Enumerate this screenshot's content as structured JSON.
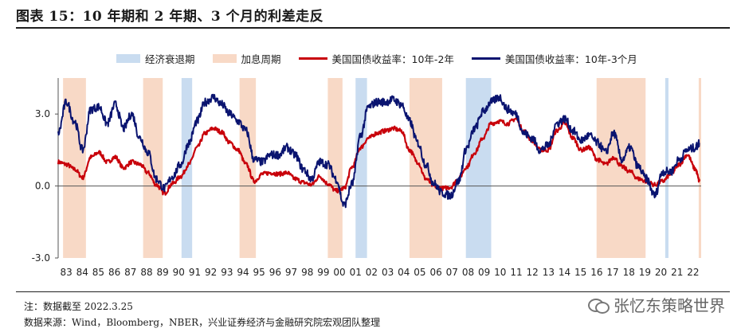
{
  "header": {
    "title": "图表 15：10 年期和 2 年期、3 个月的利差走反"
  },
  "footer": {
    "note": "注：数据截至 2022.3.25",
    "source": "数据来源：Wind，Bloomberg，NBER，兴业证券经济与金融研究院宏观团队整理",
    "watermark": "张忆东策略世界"
  },
  "colors": {
    "recession": "#c9dcf0",
    "hiking": "#f8d9c6",
    "series_10y2y": "#c8000a",
    "series_10y3m": "#0a1470"
  },
  "chart_data": {
    "type": "line",
    "title": "10 年期和 2 年期、3 个月的利差走反",
    "xlabel": "",
    "ylabel": "",
    "ylim": [
      -3,
      4.5
    ],
    "xlim": [
      1983,
      2022.35
    ],
    "yticks": [
      "-3.0",
      "0.0",
      "3.0"
    ],
    "ytick_values": [
      -3,
      0,
      3
    ],
    "xticks": [
      "83",
      "84",
      "85",
      "86",
      "87",
      "88",
      "89",
      "90",
      "91",
      "92",
      "93",
      "94",
      "95",
      "96",
      "97",
      "98",
      "99",
      "00",
      "01",
      "02",
      "03",
      "04",
      "05",
      "06",
      "07",
      "08",
      "09",
      "10",
      "11",
      "12",
      "13",
      "14",
      "15",
      "16",
      "17",
      "18",
      "19",
      "20",
      "21",
      "22"
    ],
    "legend": {
      "recession": "经济衰退期",
      "hiking": "加息周期",
      "series_10y2y": "美国国债收益率：10年-2年",
      "series_10y3m": "美国国债收益率：10年-3个月"
    },
    "recessions": [
      [
        1990.55,
        1991.2
      ],
      [
        2001.2,
        2001.9
      ],
      [
        2007.95,
        2009.5
      ],
      [
        2020.15,
        2020.35
      ]
    ],
    "hiking_cycles": [
      [
        1983.3,
        1984.7
      ],
      [
        1988.2,
        1989.4
      ],
      [
        1994.1,
        1995.1
      ],
      [
        1999.5,
        2000.4
      ],
      [
        2004.5,
        2006.5
      ],
      [
        2015.95,
        2018.95
      ],
      [
        2022.2,
        2022.35
      ]
    ],
    "series": [
      {
        "name": "美国国债收益率：10年-2年",
        "x": [
          1983.0,
          1983.5,
          1984.0,
          1984.5,
          1985.0,
          1985.5,
          1986.0,
          1986.5,
          1987.0,
          1987.5,
          1988.0,
          1988.5,
          1989.0,
          1989.5,
          1990.0,
          1990.5,
          1991.0,
          1991.5,
          1992.0,
          1992.5,
          1993.0,
          1993.5,
          1994.0,
          1994.5,
          1995.0,
          1995.5,
          1996.0,
          1996.5,
          1997.0,
          1997.5,
          1998.0,
          1998.5,
          1999.0,
          1999.5,
          2000.0,
          2000.5,
          2001.0,
          2001.5,
          2002.0,
          2002.5,
          2003.0,
          2003.5,
          2004.0,
          2004.5,
          2005.0,
          2005.5,
          2006.0,
          2006.5,
          2007.0,
          2007.5,
          2008.0,
          2008.5,
          2009.0,
          2009.5,
          2010.0,
          2010.5,
          2011.0,
          2011.5,
          2012.0,
          2012.5,
          2013.0,
          2013.5,
          2014.0,
          2014.5,
          2015.0,
          2015.5,
          2016.0,
          2016.5,
          2017.0,
          2017.5,
          2018.0,
          2018.5,
          2019.0,
          2019.5,
          2020.0,
          2020.5,
          2021.0,
          2021.5,
          2022.0,
          2022.25
        ],
        "values": [
          1.0,
          0.9,
          0.7,
          0.35,
          1.2,
          1.4,
          1.0,
          1.2,
          0.75,
          1.0,
          0.9,
          0.55,
          0.05,
          -0.3,
          0.1,
          0.4,
          0.9,
          1.6,
          2.2,
          2.4,
          2.25,
          1.8,
          1.5,
          0.9,
          0.2,
          0.5,
          0.55,
          0.5,
          0.55,
          0.3,
          0.15,
          0.05,
          0.4,
          0.1,
          -0.2,
          -0.1,
          0.8,
          1.6,
          2.0,
          2.2,
          2.3,
          2.4,
          2.3,
          1.5,
          1.0,
          0.3,
          0.0,
          -0.1,
          -0.05,
          0.3,
          0.8,
          1.4,
          2.0,
          2.6,
          2.7,
          2.6,
          2.8,
          2.3,
          1.9,
          1.5,
          1.5,
          2.3,
          2.6,
          2.0,
          1.5,
          1.6,
          1.1,
          0.9,
          1.2,
          0.8,
          0.6,
          0.3,
          0.2,
          0.05,
          0.2,
          0.5,
          0.9,
          1.3,
          0.7,
          0.2
        ]
      },
      {
        "name": "美国国债收益率：10年-3个月",
        "x": [
          1983.0,
          1983.5,
          1984.0,
          1984.5,
          1985.0,
          1985.5,
          1986.0,
          1986.5,
          1987.0,
          1987.5,
          1988.0,
          1988.5,
          1989.0,
          1989.5,
          1990.0,
          1990.5,
          1991.0,
          1991.5,
          1992.0,
          1992.5,
          1993.0,
          1993.5,
          1994.0,
          1994.5,
          1995.0,
          1995.5,
          1996.0,
          1996.5,
          1997.0,
          1997.5,
          1998.0,
          1998.5,
          1999.0,
          1999.5,
          2000.0,
          2000.5,
          2001.0,
          2001.5,
          2002.0,
          2002.5,
          2003.0,
          2003.5,
          2004.0,
          2004.5,
          2005.0,
          2005.5,
          2006.0,
          2006.5,
          2007.0,
          2007.5,
          2008.0,
          2008.5,
          2009.0,
          2009.5,
          2010.0,
          2010.5,
          2011.0,
          2011.5,
          2012.0,
          2012.5,
          2013.0,
          2013.5,
          2014.0,
          2014.5,
          2015.0,
          2015.5,
          2016.0,
          2016.5,
          2017.0,
          2017.5,
          2018.0,
          2018.5,
          2019.0,
          2019.5,
          2020.0,
          2020.5,
          2021.0,
          2021.5,
          2022.0,
          2022.25
        ],
        "values": [
          2.2,
          3.5,
          2.7,
          1.5,
          3.2,
          3.3,
          2.6,
          3.4,
          2.4,
          3.0,
          2.0,
          1.4,
          0.3,
          -0.1,
          0.4,
          0.9,
          1.8,
          2.7,
          3.5,
          3.7,
          3.4,
          3.0,
          2.7,
          2.3,
          1.1,
          1.0,
          1.3,
          1.3,
          1.6,
          1.3,
          0.7,
          0.3,
          1.0,
          0.9,
          0.3,
          -0.8,
          0.1,
          2.1,
          3.3,
          3.5,
          3.5,
          3.6,
          3.4,
          2.7,
          1.8,
          0.9,
          0.1,
          -0.3,
          -0.4,
          0.2,
          1.6,
          2.4,
          3.1,
          3.5,
          3.7,
          3.2,
          3.0,
          2.2,
          2.0,
          1.5,
          1.7,
          2.6,
          2.8,
          2.3,
          1.9,
          2.1,
          1.8,
          1.4,
          2.2,
          1.1,
          1.6,
          0.8,
          0.3,
          -0.4,
          0.6,
          0.6,
          1.1,
          1.5,
          1.6,
          1.8
        ]
      }
    ]
  }
}
